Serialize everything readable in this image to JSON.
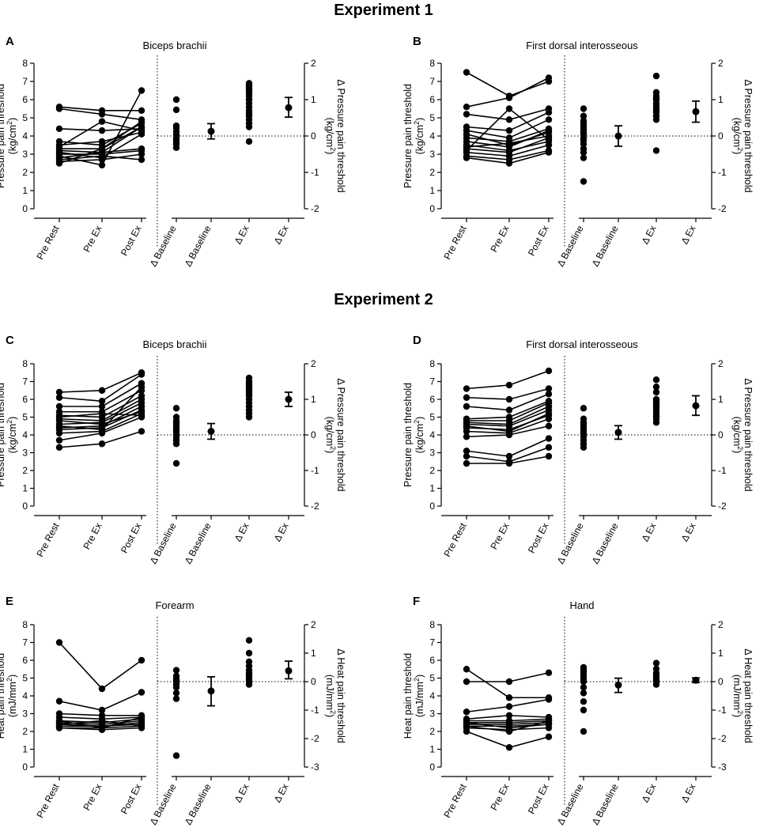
{
  "figure": {
    "experiment1_title": "Experiment 1",
    "experiment2_title": "Experiment 2"
  },
  "chart_data": [
    {
      "panel": "A",
      "title": "Biceps brachii",
      "type": "scatter",
      "ylabel_left": [
        "Pressure pain threshold",
        "(kg/cm²)"
      ],
      "ylabel_right": [
        "Δ Pressure pain threshold",
        "(kg/cm²)"
      ],
      "left_ylim": [
        0,
        8
      ],
      "left_ticks": [
        "0",
        "1",
        "2",
        "3",
        "4",
        "5",
        "6",
        "7",
        "8"
      ],
      "right_ylim": [
        -2,
        2
      ],
      "right_ticks": [
        "-2",
        "-1",
        "0",
        "1",
        "2"
      ],
      "categories": [
        "Pre Rest",
        "Pre Ex",
        "Post Ex",
        "Δ Baseline",
        "Δ Baseline",
        "Δ Ex",
        "Δ Ex"
      ],
      "paired": [
        [
          5.6,
          5.4,
          5.4
        ],
        [
          5.5,
          5.2,
          4.9
        ],
        [
          4.4,
          4.3,
          4.4
        ],
        [
          3.7,
          3.5,
          4.7
        ],
        [
          3.5,
          3.7,
          4.2
        ],
        [
          3.3,
          3.3,
          4.8
        ],
        [
          3.2,
          3.1,
          4.5
        ],
        [
          3.0,
          3.0,
          3.2
        ],
        [
          2.8,
          3.1,
          3.3
        ],
        [
          2.7,
          2.9,
          2.7
        ],
        [
          2.6,
          2.7,
          3.0
        ],
        [
          2.5,
          3.3,
          4.5
        ],
        [
          2.9,
          2.4,
          6.5
        ],
        [
          3.1,
          2.8,
          4.1
        ],
        [
          3.4,
          4.8,
          4.3
        ]
      ],
      "delta_baseline": [
        1.0,
        0.72,
        0.22,
        0.12,
        0.03,
        -0.05,
        -0.12,
        -0.22,
        -0.32,
        0.28,
        -0.15
      ],
      "delta_baseline_mean": 0.13,
      "delta_baseline_ci": [
        -0.08,
        0.34
      ],
      "delta_ex": [
        1.45,
        1.35,
        1.25,
        1.18,
        1.1,
        1.0,
        0.9,
        0.8,
        0.7,
        0.62,
        0.55,
        0.45,
        0.35,
        0.25,
        -0.15,
        1.4,
        1.3
      ],
      "delta_ex_mean": 0.78,
      "delta_ex_ci": [
        0.52,
        1.06
      ]
    },
    {
      "panel": "B",
      "title": "First dorsal interosseous",
      "type": "scatter",
      "ylabel_left": [
        "Pressure pain threshold",
        "(kg/cm²)"
      ],
      "ylabel_right": [
        "Δ Pressure pain threshold",
        "(kg/cm²)"
      ],
      "left_ylim": [
        0,
        8
      ],
      "left_ticks": [
        "0",
        "1",
        "2",
        "3",
        "4",
        "5",
        "6",
        "7",
        "8"
      ],
      "right_ylim": [
        -2,
        2
      ],
      "right_ticks": [
        "-2",
        "-1",
        "0",
        "1",
        "2"
      ],
      "categories": [
        "Pre Rest",
        "Pre Ex",
        "Post Ex",
        "Δ Baseline",
        "Δ Baseline",
        "Δ Ex",
        "Δ Ex"
      ],
      "paired": [
        [
          7.5,
          6.2,
          7.0
        ],
        [
          5.6,
          6.1,
          7.2
        ],
        [
          5.2,
          4.9,
          5.5
        ],
        [
          4.5,
          4.3,
          5.3
        ],
        [
          4.3,
          3.9,
          4.9
        ],
        [
          3.9,
          3.7,
          4.4
        ],
        [
          3.7,
          3.4,
          4.3
        ],
        [
          3.5,
          3.2,
          3.7
        ],
        [
          3.3,
          3.1,
          3.9
        ],
        [
          3.1,
          2.9,
          3.5
        ],
        [
          2.9,
          2.7,
          3.2
        ],
        [
          2.8,
          2.5,
          3.1
        ],
        [
          3.4,
          3.6,
          4.0
        ],
        [
          4.1,
          3.5,
          4.2
        ],
        [
          3.2,
          5.5,
          3.8
        ]
      ],
      "delta_baseline": [
        0.75,
        0.55,
        0.42,
        0.3,
        0.22,
        0.15,
        0.05,
        -0.05,
        -0.12,
        -0.22,
        -0.35,
        -0.45,
        -0.6,
        -1.25,
        0.35,
        0.1
      ],
      "delta_baseline_mean": 0.0,
      "delta_baseline_ci": [
        -0.28,
        0.28
      ],
      "delta_ex": [
        1.65,
        1.2,
        1.1,
        1.0,
        0.9,
        0.82,
        0.75,
        0.65,
        0.55,
        0.45,
        -0.4,
        1.05,
        0.7
      ],
      "delta_ex_mean": 0.67,
      "delta_ex_ci": [
        0.38,
        0.96
      ]
    },
    {
      "panel": "C",
      "title": "Biceps brachii",
      "type": "scatter",
      "ylabel_left": [
        "Pressure pain threshold",
        "(kg/cm²)"
      ],
      "ylabel_right": [
        "Δ Pressure pain threshold",
        "(kg/cm²)"
      ],
      "left_ylim": [
        0,
        8
      ],
      "left_ticks": [
        "0",
        "1",
        "2",
        "3",
        "4",
        "5",
        "6",
        "7",
        "8"
      ],
      "right_ylim": [
        -2,
        2
      ],
      "right_ticks": [
        "-2",
        "-1",
        "0",
        "1",
        "2"
      ],
      "categories": [
        "Pre Rest",
        "Pre Ex",
        "Post Ex",
        "Δ Baseline",
        "Δ Baseline",
        "Δ Ex",
        "Δ Ex"
      ],
      "paired": [
        [
          6.4,
          6.5,
          7.5
        ],
        [
          6.1,
          5.9,
          7.4
        ],
        [
          5.6,
          5.6,
          6.9
        ],
        [
          5.3,
          5.3,
          6.5
        ],
        [
          5.1,
          5.0,
          6.2
        ],
        [
          4.9,
          4.8,
          6.0
        ],
        [
          4.6,
          4.7,
          5.8
        ],
        [
          4.4,
          4.5,
          5.6
        ],
        [
          4.3,
          4.4,
          5.4
        ],
        [
          4.1,
          4.2,
          5.2
        ],
        [
          3.7,
          4.1,
          5.0
        ],
        [
          3.3,
          3.5,
          4.2
        ],
        [
          4.8,
          4.6,
          5.3
        ],
        [
          5.0,
          5.2,
          5.1
        ],
        [
          4.5,
          4.3,
          6.7
        ]
      ],
      "delta_baseline": [
        0.75,
        0.5,
        0.4,
        0.3,
        0.22,
        0.15,
        0.08,
        0.0,
        -0.08,
        -0.15,
        -0.25,
        -0.8,
        0.35,
        0.1
      ],
      "delta_baseline_mean": 0.1,
      "delta_baseline_ci": [
        -0.12,
        0.32
      ],
      "delta_ex": [
        1.6,
        1.5,
        1.4,
        1.3,
        1.2,
        1.1,
        1.0,
        0.9,
        0.8,
        0.7,
        0.6,
        0.5,
        1.45,
        1.35,
        1.25,
        1.15
      ],
      "delta_ex_mean": 1.0,
      "delta_ex_ci": [
        0.8,
        1.2
      ]
    },
    {
      "panel": "D",
      "title": "First dorsal interosseous",
      "type": "scatter",
      "ylabel_left": [
        "Pressure pain threshold",
        "(kg/cm²)"
      ],
      "ylabel_right": [
        "Δ Pressure pain threshold",
        "(kg/cm²)"
      ],
      "left_ylim": [
        0,
        8
      ],
      "left_ticks": [
        "0",
        "1",
        "2",
        "3",
        "4",
        "5",
        "6",
        "7",
        "8"
      ],
      "right_ylim": [
        -2,
        2
      ],
      "right_ticks": [
        "-2",
        "-1",
        "0",
        "1",
        "2"
      ],
      "categories": [
        "Pre Rest",
        "Pre Ex",
        "Post Ex",
        "Δ Baseline",
        "Δ Baseline",
        "Δ Ex",
        "Δ Ex"
      ],
      "paired": [
        [
          6.6,
          6.8,
          7.6
        ],
        [
          6.1,
          6.0,
          6.6
        ],
        [
          5.6,
          5.4,
          6.3
        ],
        [
          4.9,
          5.0,
          5.9
        ],
        [
          4.8,
          4.8,
          5.8
        ],
        [
          4.7,
          4.6,
          5.6
        ],
        [
          4.6,
          4.5,
          5.4
        ],
        [
          4.4,
          4.3,
          5.1
        ],
        [
          4.2,
          4.1,
          4.9
        ],
        [
          3.9,
          4.0,
          4.5
        ],
        [
          3.1,
          2.8,
          3.8
        ],
        [
          2.8,
          2.5,
          3.3
        ],
        [
          2.4,
          2.4,
          2.8
        ],
        [
          4.5,
          4.2,
          5.2
        ]
      ],
      "delta_baseline": [
        0.75,
        0.45,
        0.35,
        0.25,
        0.18,
        0.1,
        0.03,
        -0.05,
        -0.15,
        -0.25,
        -0.35,
        0.3,
        0.05
      ],
      "delta_baseline_mean": 0.07,
      "delta_baseline_ci": [
        -0.12,
        0.26
      ],
      "delta_ex": [
        1.55,
        1.35,
        1.2,
        1.0,
        0.95,
        0.85,
        0.75,
        0.68,
        0.6,
        0.52,
        0.45,
        0.35,
        0.9,
        0.8
      ],
      "delta_ex_mean": 0.82,
      "delta_ex_ci": [
        0.55,
        1.1
      ]
    },
    {
      "panel": "E",
      "title": "Forearm",
      "type": "scatter",
      "ylabel_left": [
        "Heat pain threshold",
        "(mJ/mm²)"
      ],
      "ylabel_right": [
        "Δ Heat pain threshold",
        "(mJ/mm²)"
      ],
      "left_ylim": [
        0,
        8
      ],
      "left_ticks": [
        "0",
        "1",
        "2",
        "3",
        "4",
        "5",
        "6",
        "7",
        "8"
      ],
      "right_ylim": [
        -3,
        2
      ],
      "right_ticks": [
        "-3",
        "-2",
        "-1",
        "0",
        "1",
        "2"
      ],
      "categories": [
        "Pre Rest",
        "Pre Ex",
        "Post Ex",
        "Δ Baseline",
        "Δ Baseline",
        "Δ Ex",
        "Δ Ex"
      ],
      "paired": [
        [
          7.0,
          4.4,
          6.0
        ],
        [
          3.7,
          3.2,
          4.2
        ],
        [
          3.0,
          2.9,
          2.9
        ],
        [
          2.8,
          2.7,
          2.8
        ],
        [
          2.6,
          2.5,
          2.7
        ],
        [
          2.5,
          2.4,
          2.6
        ],
        [
          2.4,
          2.3,
          2.5
        ],
        [
          2.3,
          2.3,
          2.4
        ],
        [
          2.2,
          2.2,
          2.3
        ],
        [
          2.2,
          2.1,
          2.2
        ],
        [
          2.6,
          2.2,
          2.8
        ],
        [
          2.4,
          2.6,
          2.3
        ]
      ],
      "delta_baseline": [
        0.4,
        0.2,
        0.1,
        0.0,
        -0.1,
        -0.2,
        -0.4,
        -0.6,
        -2.6,
        0.05
      ],
      "delta_baseline_mean": -0.33,
      "delta_baseline_ci": [
        -0.85,
        0.17
      ],
      "delta_ex": [
        1.45,
        1.0,
        0.7,
        0.55,
        0.4,
        0.3,
        0.2,
        0.1,
        0.0,
        -0.1,
        0.25
      ],
      "delta_ex_mean": 0.38,
      "delta_ex_ci": [
        0.1,
        0.72
      ]
    },
    {
      "panel": "F",
      "title": "Hand",
      "type": "scatter",
      "ylabel_left": [
        "Heat pain threshold",
        "(mJ/mm²)"
      ],
      "ylabel_right": [
        "Δ Heat pain threshold",
        "(mJ/mm²)"
      ],
      "left_ylim": [
        0,
        8
      ],
      "left_ticks": [
        "0",
        "1",
        "2",
        "3",
        "4",
        "5",
        "6",
        "7",
        "8"
      ],
      "right_ylim": [
        -3,
        2
      ],
      "right_ticks": [
        "-3",
        "-2",
        "-1",
        "0",
        "1",
        "2"
      ],
      "categories": [
        "Pre Rest",
        "Pre Ex",
        "Post Ex",
        "Δ Baseline",
        "Δ Baseline",
        "Δ Ex",
        "Δ Ex"
      ],
      "paired": [
        [
          5.5,
          3.9,
          3.9
        ],
        [
          4.8,
          4.8,
          5.3
        ],
        [
          3.1,
          3.4,
          3.8
        ],
        [
          2.7,
          2.9,
          2.8
        ],
        [
          2.6,
          2.6,
          2.7
        ],
        [
          2.5,
          2.5,
          2.6
        ],
        [
          2.4,
          2.4,
          2.5
        ],
        [
          2.3,
          2.3,
          2.4
        ],
        [
          2.2,
          2.1,
          2.2
        ],
        [
          2.0,
          1.1,
          1.7
        ],
        [
          2.5,
          2.2,
          2.4
        ],
        [
          2.3,
          2.0,
          2.6
        ]
      ],
      "delta_baseline": [
        0.5,
        0.4,
        0.3,
        0.2,
        0.1,
        0.0,
        -0.2,
        -0.4,
        -0.7,
        -1.0,
        -1.75,
        0.35
      ],
      "delta_baseline_mean": -0.12,
      "delta_baseline_ci": [
        -0.38,
        0.12
      ],
      "delta_ex": [
        0.65,
        0.45,
        0.3,
        0.2,
        0.1,
        0.0,
        -0.1,
        0.15,
        0.05
      ],
      "delta_ex_mean": 0.05,
      "delta_ex_ci": [
        -0.03,
        0.13
      ]
    }
  ]
}
